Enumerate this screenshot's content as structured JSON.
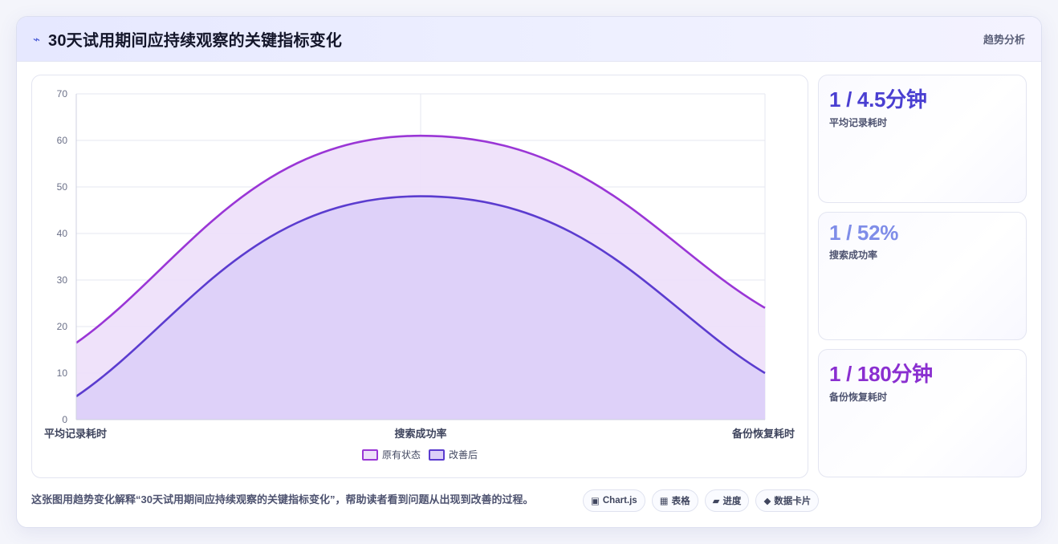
{
  "header": {
    "title": "30天试用期间应持续观察的关键指标变化",
    "tag": "趋势分析",
    "icon": "bolt-icon"
  },
  "colors": {
    "original": "#9a36d6",
    "improved": "#5b3ccf",
    "original_fill": "#eddff9",
    "improved_fill": "#dccff8"
  },
  "chart_data": {
    "type": "area",
    "categories": [
      "平均记录耗时",
      "搜索成功率",
      "备份恢复耗时"
    ],
    "series": [
      {
        "name": "原有状态",
        "values": [
          16.5,
          61,
          24
        ]
      },
      {
        "name": "改善后",
        "values": [
          5,
          48,
          10
        ]
      }
    ],
    "ylim": [
      0,
      70
    ],
    "yticks": [
      "0",
      "10",
      "20",
      "30",
      "40",
      "50",
      "60",
      "70"
    ],
    "grid": true,
    "legend": "bottom"
  },
  "legend": {
    "original": "原有状态",
    "improved": "改善后"
  },
  "kpis": [
    {
      "value": "1 / 4.5分钟",
      "label": "平均记录耗时",
      "color": "#4a3fd1"
    },
    {
      "value": "1 / 52%",
      "label": "搜索成功率",
      "color": "#7f8de8"
    },
    {
      "value": "1 / 180分钟",
      "label": "备份恢复耗时",
      "color": "#8a2fd0"
    }
  ],
  "footer": {
    "note": "这张图用趋势变化解释“30天试用期间应持续观察的关键指标变化”，帮助读者看到问题从出现到改善的过程。",
    "chips": [
      {
        "icon": "▣",
        "label": "Chart.js"
      },
      {
        "icon": "▦",
        "label": "表格"
      },
      {
        "icon": "▰",
        "label": "进度"
      },
      {
        "icon": "◆",
        "label": "数据卡片"
      }
    ]
  }
}
